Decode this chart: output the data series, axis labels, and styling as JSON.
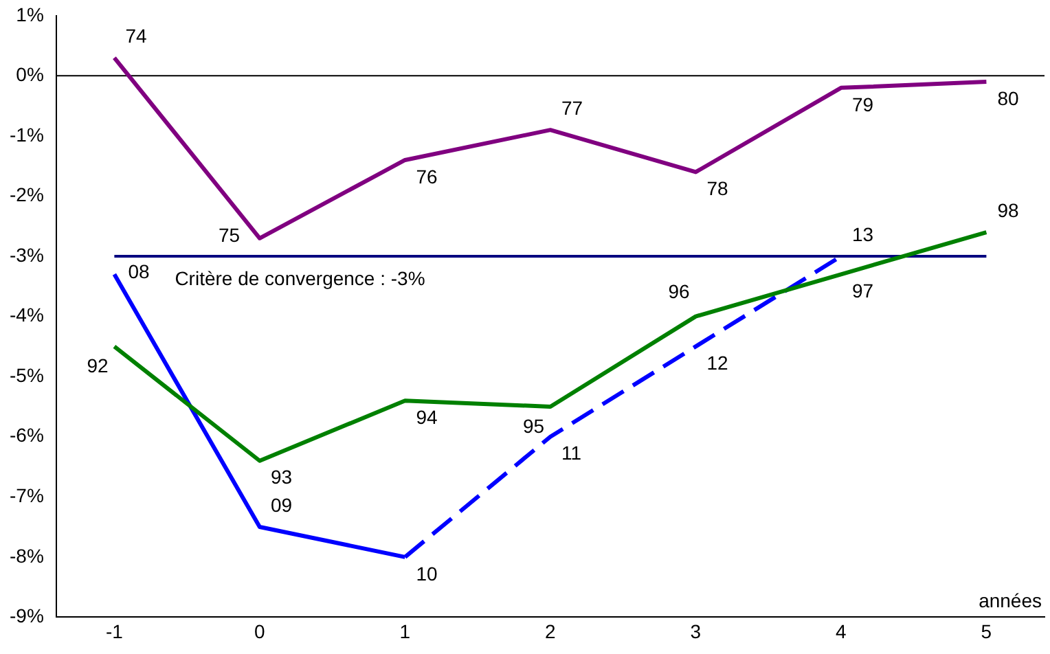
{
  "chart_data": {
    "type": "line",
    "xlabel": "années",
    "xlim": [
      -1.4,
      5.4
    ],
    "xticks": [
      -1,
      0,
      1,
      2,
      3,
      4,
      5
    ],
    "ylim": [
      -9,
      1
    ],
    "yticks": [
      {
        "value": -9,
        "label": "-9%"
      },
      {
        "value": -8,
        "label": "-8%"
      },
      {
        "value": -7,
        "label": "-7%"
      },
      {
        "value": -6,
        "label": "-6%"
      },
      {
        "value": -5,
        "label": "-5%"
      },
      {
        "value": -4,
        "label": "-4%"
      },
      {
        "value": -3,
        "label": "-3%"
      },
      {
        "value": -2,
        "label": "-2%"
      },
      {
        "value": -1,
        "label": "-1%"
      },
      {
        "value": 0,
        "label": "0%"
      },
      {
        "value": 1,
        "label": "1%"
      }
    ],
    "grid": false,
    "legend": false,
    "marker": "none",
    "series": [
      {
        "color": "#800080",
        "x": [
          -1,
          0,
          1,
          2,
          3,
          4,
          5
        ],
        "values": [
          0.3,
          -2.7,
          -1.4,
          -0.9,
          -1.6,
          -0.2,
          -0.1
        ]
      },
      {
        "color": "#008000",
        "x": [
          -1,
          0,
          1,
          2,
          3,
          4,
          5
        ],
        "values": [
          -4.5,
          -6.4,
          -5.4,
          -5.5,
          -4.0,
          -3.3,
          -2.6
        ]
      },
      {
        "color": "#0000ff",
        "x": [
          -1,
          0,
          1
        ],
        "values": [
          -3.3,
          -7.5,
          -8.0
        ]
      },
      {
        "color": "#0000ff",
        "line_style": "dashed",
        "x": [
          1,
          2,
          3,
          4
        ],
        "values": [
          -8.0,
          -6.0,
          -4.5,
          -3.0
        ]
      }
    ],
    "annotations": [
      {
        "text": "74",
        "x": -1,
        "y": 0.3
      },
      {
        "text": "75",
        "x": 0,
        "y": -2.7
      },
      {
        "text": "76",
        "x": 1,
        "y": -1.4
      },
      {
        "text": "77",
        "x": 2,
        "y": -0.9
      },
      {
        "text": "78",
        "x": 3,
        "y": -1.6
      },
      {
        "text": "79",
        "x": 4,
        "y": -0.2
      },
      {
        "text": "80",
        "x": 5,
        "y": -0.1
      },
      {
        "text": "92",
        "x": -1,
        "y": -4.5
      },
      {
        "text": "93",
        "x": 0,
        "y": -6.4
      },
      {
        "text": "94",
        "x": 1,
        "y": -5.4
      },
      {
        "text": "95",
        "x": 2,
        "y": -5.5
      },
      {
        "text": "96",
        "x": 3,
        "y": -4.0
      },
      {
        "text": "97",
        "x": 4,
        "y": -3.3
      },
      {
        "text": "98",
        "x": 5,
        "y": -2.6
      },
      {
        "text": "08",
        "x": -1,
        "y": -3.3
      },
      {
        "text": "09",
        "x": 0,
        "y": -7.5
      },
      {
        "text": "10",
        "x": 1,
        "y": -8.0
      },
      {
        "text": "11",
        "x": 2,
        "y": -6.0
      },
      {
        "text": "12",
        "x": 3,
        "y": -4.5
      },
      {
        "text": "13",
        "x": 4,
        "y": -3.0
      }
    ],
    "ref_lines": [
      {
        "axis": "y",
        "value": -3,
        "label": "Critère de convergence : -3%",
        "color": "#000080"
      },
      {
        "axis": "y",
        "value": 0,
        "color": "#000000"
      }
    ]
  }
}
